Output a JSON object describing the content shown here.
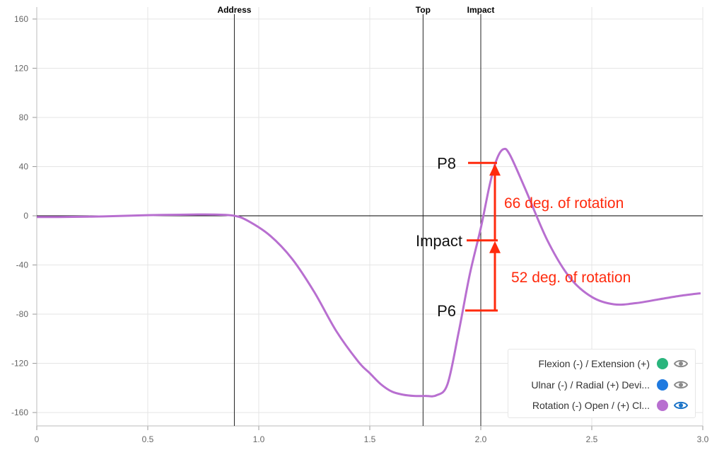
{
  "chart_data": {
    "type": "line",
    "xlim": [
      0,
      3.0
    ],
    "ylim": [
      -170,
      170
    ],
    "x_ticks": [
      "0",
      "0.5",
      "1.0",
      "1.5",
      "2.0",
      "2.5",
      "3.0"
    ],
    "y_ticks": [
      "160",
      "120",
      "80",
      "40",
      "0",
      "-40",
      "-80",
      "-120",
      "-160"
    ],
    "grid": true,
    "legend_position": "bottom-right",
    "vertical_markers": [
      {
        "label": "Address",
        "x": 0.89
      },
      {
        "label": "Top",
        "x": 1.74
      },
      {
        "label": "Impact",
        "x": 2.0
      }
    ],
    "series": [
      {
        "name": "Flexion (-) / Extension (+)",
        "color": "#2ab57d",
        "visible": false
      },
      {
        "name": "Ulnar (-) / Radial (+) Devi...",
        "color": "#1f7ae0",
        "visible": false
      },
      {
        "name": "Rotation (-) Open / (+) Cl...",
        "color": "#b86fd0",
        "visible": true,
        "x": [
          0,
          0.1,
          0.3,
          0.5,
          0.7,
          0.8,
          0.89,
          0.95,
          1.05,
          1.15,
          1.25,
          1.35,
          1.45,
          1.5,
          1.55,
          1.6,
          1.65,
          1.7,
          1.75,
          1.8,
          1.85,
          1.9,
          1.95,
          2.0,
          2.04,
          2.07,
          2.1,
          2.13,
          2.2,
          2.3,
          2.4,
          2.5,
          2.6,
          2.7,
          2.8,
          2.9,
          2.99
        ],
        "y": [
          -1,
          -1,
          -0.5,
          0.5,
          1,
          1,
          0,
          -4,
          -16,
          -35,
          -62,
          -94,
          -119,
          -128,
          -137,
          -143,
          -145.5,
          -146.5,
          -146.5,
          -146,
          -137,
          -95,
          -48,
          -10,
          25,
          45,
          54,
          50,
          22,
          -20,
          -50,
          -66,
          -72,
          -71,
          -68,
          -65,
          -63
        ]
      }
    ],
    "annotations": {
      "p8": {
        "label": "P8",
        "y": 43
      },
      "impact": {
        "label": "Impact",
        "y": -20
      },
      "p6": {
        "label": "P6",
        "y": -77
      },
      "rotation_upper": "66 deg. of rotation",
      "rotation_lower": "52 deg. of rotation",
      "annotation_color": "#ff2a0d"
    }
  },
  "colors": {
    "grid": "#e5e5e5",
    "axis": "#000000",
    "inactive_eye": "#8a8a8a",
    "active_eye": "#1a73c8"
  }
}
